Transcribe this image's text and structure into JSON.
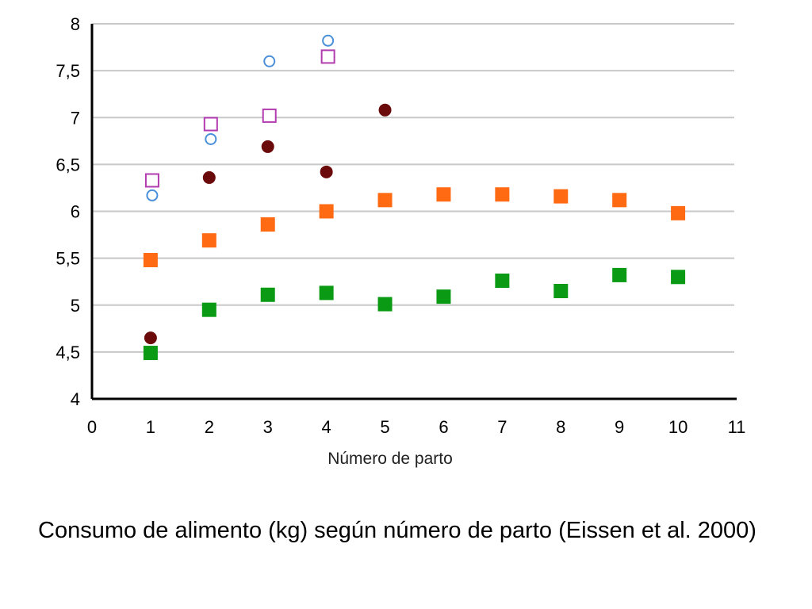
{
  "chart_data": {
    "type": "scatter",
    "xlabel": "Número de parto",
    "ylabel": "",
    "xlim": [
      0,
      11
    ],
    "ylim": [
      4,
      8
    ],
    "x_ticks": [
      "0",
      "1",
      "2",
      "3",
      "4",
      "5",
      "6",
      "7",
      "8",
      "9",
      "10",
      "11"
    ],
    "y_ticks": [
      "4",
      "4,5",
      "5",
      "5,5",
      "6",
      "6,5",
      "7",
      "7,5",
      "8"
    ],
    "grid": "horizontal",
    "legend": "none",
    "series": [
      {
        "marker": "open-circle",
        "color": "#4a90d9",
        "x": [
          1,
          2,
          3,
          4
        ],
        "y": [
          6.17,
          6.77,
          7.6,
          7.82
        ]
      },
      {
        "marker": "open-square",
        "color": "#b23bb0",
        "x": [
          1,
          2,
          3,
          4
        ],
        "y": [
          6.33,
          6.93,
          7.02,
          7.65
        ]
      },
      {
        "marker": "filled-circle",
        "color": "#6b0a0a",
        "x": [
          1,
          2,
          3,
          4,
          5
        ],
        "y": [
          4.65,
          6.36,
          6.69,
          6.42,
          7.08
        ]
      },
      {
        "marker": "filled-square",
        "color": "#ff6a13",
        "x": [
          1,
          2,
          3,
          4,
          5,
          6,
          7,
          8,
          9,
          10
        ],
        "y": [
          5.48,
          5.69,
          5.86,
          6.0,
          6.12,
          6.18,
          6.18,
          6.16,
          6.12,
          5.98
        ]
      },
      {
        "marker": "filled-square",
        "color": "#0a9a14",
        "x": [
          1,
          2,
          3,
          4,
          5,
          6,
          7,
          8,
          9,
          10
        ],
        "y": [
          4.49,
          4.95,
          5.11,
          5.13,
          5.01,
          5.09,
          5.26,
          5.15,
          5.32,
          5.3
        ]
      }
    ]
  },
  "caption": "Consumo de alimento (kg) según número de parto (Eissen et al. 2000)"
}
